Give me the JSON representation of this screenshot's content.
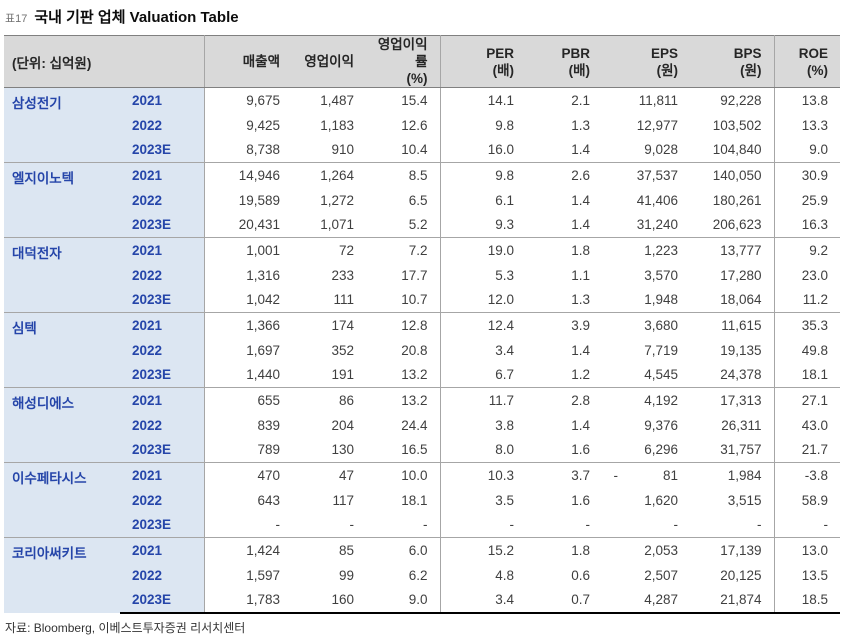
{
  "title": {
    "tag": "표17",
    "text": "국내 기판 업체 Valuation Table"
  },
  "colors": {
    "accent-blue": "#2545a9",
    "row-blue": "#dce6f2",
    "header-gray": "#d9d9d9",
    "line-gray": "#a6a6a6",
    "line-dark": "#808080",
    "num-gray": "#3f3f3f"
  },
  "table": {
    "unit_label": "(단위: 십억원)",
    "columns": [
      {
        "key": "sales",
        "label": "매출액",
        "sub": ""
      },
      {
        "key": "op",
        "label": "영업이익",
        "sub": ""
      },
      {
        "key": "opm",
        "label": "영업이익률",
        "sub": "(%)"
      },
      {
        "key": "per",
        "label": "PER",
        "sub": "(배)"
      },
      {
        "key": "pbr",
        "label": "PBR",
        "sub": "(배)"
      },
      {
        "key": "eps",
        "label": "EPS",
        "sub": "(원)"
      },
      {
        "key": "bps",
        "label": "BPS",
        "sub": "(원)"
      },
      {
        "key": "roe",
        "label": "ROE",
        "sub": "(%)"
      }
    ],
    "companies": [
      {
        "name": "삼성전기",
        "rows": [
          {
            "year": "2021",
            "values": [
              "9,675",
              "1,487",
              "15.4",
              "14.1",
              "2.1",
              "11,811",
              "92,228",
              "13.8"
            ]
          },
          {
            "year": "2022",
            "values": [
              "9,425",
              "1,183",
              "12.6",
              "9.8",
              "1.3",
              "12,977",
              "103,502",
              "13.3"
            ]
          },
          {
            "year": "2023E",
            "values": [
              "8,738",
              "910",
              "10.4",
              "16.0",
              "1.4",
              "9,028",
              "104,840",
              "9.0"
            ]
          }
        ]
      },
      {
        "name": "엘지이노텍",
        "rows": [
          {
            "year": "2021",
            "values": [
              "14,946",
              "1,264",
              "8.5",
              "9.8",
              "2.6",
              "37,537",
              "140,050",
              "30.9"
            ]
          },
          {
            "year": "2022",
            "values": [
              "19,589",
              "1,272",
              "6.5",
              "6.1",
              "1.4",
              "41,406",
              "180,261",
              "25.9"
            ]
          },
          {
            "year": "2023E",
            "values": [
              "20,431",
              "1,071",
              "5.2",
              "9.3",
              "1.4",
              "31,240",
              "206,623",
              "16.3"
            ]
          }
        ]
      },
      {
        "name": "대덕전자",
        "rows": [
          {
            "year": "2021",
            "values": [
              "1,001",
              "72",
              "7.2",
              "19.0",
              "1.8",
              "1,223",
              "13,777",
              "9.2"
            ]
          },
          {
            "year": "2022",
            "values": [
              "1,316",
              "233",
              "17.7",
              "5.3",
              "1.1",
              "3,570",
              "17,280",
              "23.0"
            ]
          },
          {
            "year": "2023E",
            "values": [
              "1,042",
              "111",
              "10.7",
              "12.0",
              "1.3",
              "1,948",
              "18,064",
              "11.2"
            ]
          }
        ]
      },
      {
        "name": "심텍",
        "rows": [
          {
            "year": "2021",
            "values": [
              "1,366",
              "174",
              "12.8",
              "12.4",
              "3.9",
              "3,680",
              "11,615",
              "35.3"
            ]
          },
          {
            "year": "2022",
            "values": [
              "1,697",
              "352",
              "20.8",
              "3.4",
              "1.4",
              "7,719",
              "19,135",
              "49.8"
            ]
          },
          {
            "year": "2023E",
            "values": [
              "1,440",
              "191",
              "13.2",
              "6.7",
              "1.2",
              "4,545",
              "24,378",
              "18.1"
            ]
          }
        ]
      },
      {
        "name": "해성디에스",
        "rows": [
          {
            "year": "2021",
            "values": [
              "655",
              "86",
              "13.2",
              "11.7",
              "2.8",
              "4,192",
              "17,313",
              "27.1"
            ]
          },
          {
            "year": "2022",
            "values": [
              "839",
              "204",
              "24.4",
              "3.8",
              "1.4",
              "9,376",
              "26,311",
              "43.0"
            ]
          },
          {
            "year": "2023E",
            "values": [
              "789",
              "130",
              "16.5",
              "8.0",
              "1.6",
              "6,296",
              "31,757",
              "21.7"
            ]
          }
        ]
      },
      {
        "name": "이수페타시스",
        "rows": [
          {
            "year": "2021",
            "values": [
              "470",
              "47",
              "10.0",
              "10.3",
              "3.7",
              "-            81",
              "1,984",
              "-3.8"
            ]
          },
          {
            "year": "2022",
            "values": [
              "643",
              "117",
              "18.1",
              "3.5",
              "1.6",
              "1,620",
              "3,515",
              "58.9"
            ]
          },
          {
            "year": "2023E",
            "values": [
              "-",
              "-",
              "-",
              "-",
              "-",
              "-",
              "-",
              "-"
            ]
          }
        ]
      },
      {
        "name": "코리아써키트",
        "rows": [
          {
            "year": "2021",
            "values": [
              "1,424",
              "85",
              "6.0",
              "15.2",
              "1.8",
              "2,053",
              "17,139",
              "13.0"
            ]
          },
          {
            "year": "2022",
            "values": [
              "1,597",
              "99",
              "6.2",
              "4.8",
              "0.6",
              "2,507",
              "20,125",
              "13.5"
            ]
          },
          {
            "year": "2023E",
            "values": [
              "1,783",
              "160",
              "9.0",
              "3.4",
              "0.7",
              "4,287",
              "21,874",
              "18.5"
            ]
          }
        ]
      }
    ]
  },
  "footer": {
    "source": "자료: Bloomberg, 이베스트투자증권 리서치센터"
  }
}
